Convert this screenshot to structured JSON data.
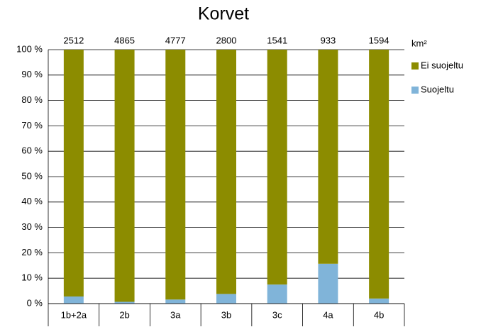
{
  "chart_data": {
    "type": "stacked_bar_100",
    "title": "Korvet",
    "categories": [
      "1b+2a",
      "2b",
      "3a",
      "3b",
      "3c",
      "4a",
      "4b"
    ],
    "series": [
      {
        "name": "Ei suojeltu",
        "color": "#8c8c00",
        "values": [
          97.2,
          99.3,
          98.4,
          96.2,
          92.5,
          84.3,
          98.0
        ]
      },
      {
        "name": "Suojeltu",
        "color": "#80b4d9",
        "values": [
          2.8,
          0.7,
          1.6,
          3.8,
          7.5,
          15.7,
          2.0
        ]
      }
    ],
    "totals_label": "km²",
    "totals": [
      2512,
      4865,
      4777,
      2800,
      1541,
      933,
      1594
    ],
    "ylim": [
      0,
      100
    ],
    "yticks": [
      {
        "value": 0,
        "label": "0 %"
      },
      {
        "value": 10,
        "label": "10 %"
      },
      {
        "value": 20,
        "label": "20 %"
      },
      {
        "value": 30,
        "label": "30 %"
      },
      {
        "value": 40,
        "label": "40 %"
      },
      {
        "value": 50,
        "label": "50 %"
      },
      {
        "value": 60,
        "label": "60 %"
      },
      {
        "value": 70,
        "label": "70 %"
      },
      {
        "value": 80,
        "label": "80 %"
      },
      {
        "value": 90,
        "label": "90 %"
      },
      {
        "value": 100,
        "label": "100 %"
      }
    ],
    "grid": true
  }
}
